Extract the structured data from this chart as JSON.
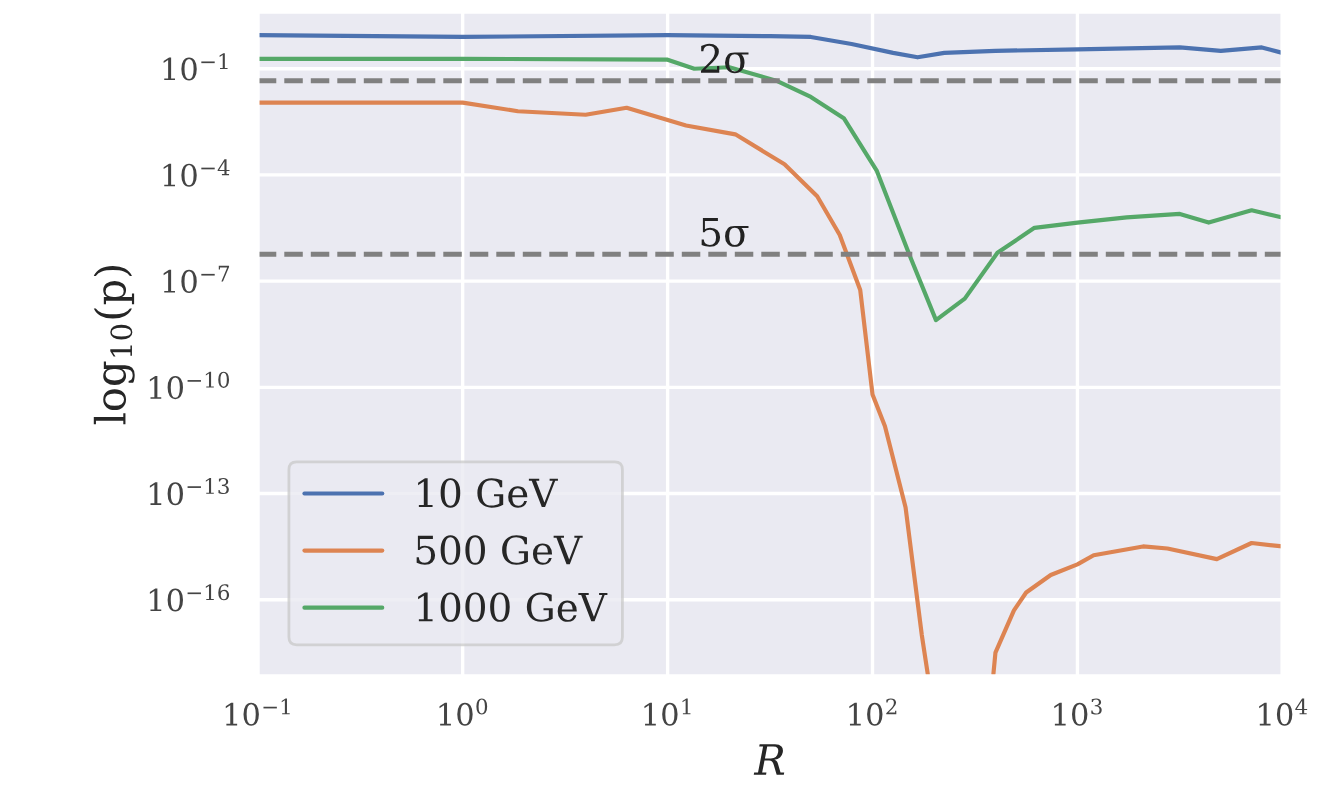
{
  "chart_data": {
    "type": "line",
    "xlabel": "R",
    "ylabel": "log$_{10}$(p)",
    "log": "xy",
    "grid": true,
    "legend": "bottom left",
    "line_style": "solid",
    "marker": "none",
    "xlim": [
      0.1,
      10000
    ],
    "ylim": [
      7e-19,
      4
    ],
    "xticks": [
      {
        "value": 0.1,
        "label": "10$^{−1}$"
      },
      {
        "value": 1,
        "label": "10$^{0}$"
      },
      {
        "value": 10,
        "label": "10$^{1}$"
      },
      {
        "value": 100,
        "label": "10$^{2}$"
      },
      {
        "value": 1000,
        "label": "10$^{3}$"
      },
      {
        "value": 10000,
        "label": "10$^{4}$"
      }
    ],
    "yticks": [
      {
        "value": 0.1,
        "label": "10$^{−1}$"
      },
      {
        "value": 0.0001,
        "label": "10$^{−4}$"
      },
      {
        "value": 1e-07,
        "label": "10$^{−7}$"
      },
      {
        "value": 1e-10,
        "label": "10$^{−10}$"
      },
      {
        "value": 1e-13,
        "label": "10$^{−13}$"
      },
      {
        "value": 1e-16,
        "label": "10$^{−16}$"
      }
    ],
    "ref_lines": [
      {
        "axis": "y",
        "value": 0.0455,
        "label": "2σ",
        "color": "#808080",
        "line_style": "dashed"
      },
      {
        "axis": "y",
        "value": 5.7e-07,
        "label": "5σ",
        "color": "#808080",
        "line_style": "dashed"
      }
    ],
    "series": [
      {
        "name": "10 GeV",
        "color": "#4c72b0",
        "x": [
          0.1,
          1,
          10,
          31.6,
          50,
          79,
          126,
          166,
          224,
          398,
          1000,
          3160,
          5010,
          7940,
          10000
        ],
        "values": [
          0.89,
          0.79,
          0.89,
          0.83,
          0.79,
          0.5,
          0.28,
          0.21,
          0.28,
          0.32,
          0.35,
          0.4,
          0.32,
          0.4,
          0.28
        ]
      },
      {
        "name": "500 GeV",
        "color": "#dd8452",
        "x": [
          0.1,
          1,
          1.86,
          3.98,
          6.31,
          12.3,
          21.4,
          37.2,
          53.7,
          69.2,
          87.1,
          100,
          115,
          145,
          174,
          186,
          251,
          389,
          398,
          490,
          562,
          741,
          1000,
          1200,
          2090,
          2750,
          4790,
          7080,
          10000
        ],
        "values": [
          0.011,
          0.011,
          0.0063,
          0.005,
          0.0079,
          0.0025,
          0.0014,
          0.0002,
          2.5e-05,
          2e-06,
          5.6e-08,
          6.3e-11,
          7.9e-12,
          4e-14,
          1e-17,
          8e-19,
          null,
          8e-19,
          3.2e-18,
          5e-17,
          1.6e-16,
          5e-16,
          1e-15,
          1.8e-15,
          3.2e-15,
          2.8e-15,
          1.4e-15,
          4e-15,
          3.2e-15
        ]
      },
      {
        "name": "1000 GeV",
        "color": "#55a868",
        "x": [
          0.1,
          1,
          10,
          13.5,
          20,
          33.9,
          50,
          72.4,
          105,
          151,
          204,
          282,
          407,
          617,
          1000,
          1740,
          3160,
          4370,
          7080,
          10000
        ],
        "values": [
          0.19,
          0.19,
          0.18,
          0.1,
          0.11,
          0.046,
          0.016,
          0.004,
          0.00013,
          5.7e-07,
          7.9e-09,
          3.2e-08,
          6.3e-07,
          3.2e-06,
          4.5e-06,
          6.3e-06,
          7.9e-06,
          4.5e-06,
          1e-05,
          6.3e-06
        ]
      }
    ]
  }
}
